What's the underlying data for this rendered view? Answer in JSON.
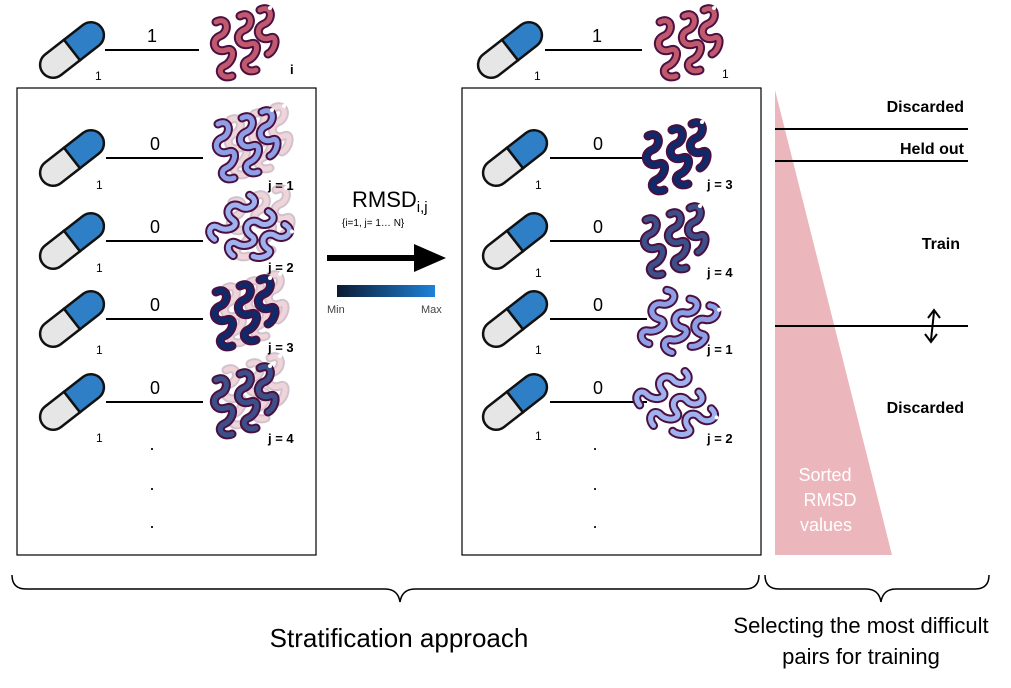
{
  "top_left": {
    "bond_label": "1",
    "drug_sub": "1",
    "protein_sub": "i"
  },
  "top_right": {
    "bond_label": "1",
    "drug_sub": "1",
    "protein_sub": "1"
  },
  "left_rows": [
    {
      "bond_label": "0",
      "drug_sub": "1",
      "j_label": "j = 1",
      "color": "#8f9fe6"
    },
    {
      "bond_label": "0",
      "drug_sub": "1",
      "j_label": "j = 2",
      "color": "#9fb1ef"
    },
    {
      "bond_label": "0",
      "drug_sub": "1",
      "j_label": "j = 3",
      "color": "#0e2a6b"
    },
    {
      "bond_label": "0",
      "drug_sub": "1",
      "j_label": "j = 4",
      "color": "#3d4e88"
    }
  ],
  "right_rows": [
    {
      "bond_label": "0",
      "drug_sub": "1",
      "j_label": "j = 3",
      "color": "#0e2a6b"
    },
    {
      "bond_label": "0",
      "drug_sub": "1",
      "j_label": "j = 4",
      "color": "#3d4e88"
    },
    {
      "bond_label": "0",
      "drug_sub": "1",
      "j_label": "j = 1",
      "color": "#8f9fe6"
    },
    {
      "bond_label": "0",
      "drug_sub": "1",
      "j_label": "j = 2",
      "color": "#9fb1ef"
    }
  ],
  "dots": ".",
  "middle": {
    "rmsd": "RMSD",
    "rmsd_sub": "i,j",
    "range": "{i=1, j= 1… N}",
    "legend_min": "Min",
    "legend_max": "Max"
  },
  "categories": {
    "discarded_top": "Discarded",
    "held_out": "Held out",
    "train": "Train",
    "discarded_bottom": "Discarded"
  },
  "triangle": {
    "line1": "Sorted",
    "line2": "RMSD",
    "line3": "values"
  },
  "bottom": {
    "left": "Stratification approach",
    "right_line1": "Selecting the most difficult",
    "right_line2": "pairs for training"
  },
  "colors": {
    "reference_protein": "#c0586e",
    "protein_outline": "#4a1040",
    "pill_blue": "#2f7fc6",
    "pill_grey": "#e6e6e6",
    "triangle": "#ecb6bd",
    "gradient_dark": "#0b1a33",
    "gradient_light": "#1e82d8"
  },
  "icons": {
    "drug": "capsule-icon",
    "protein": "alpha-helix-protein-icon"
  }
}
